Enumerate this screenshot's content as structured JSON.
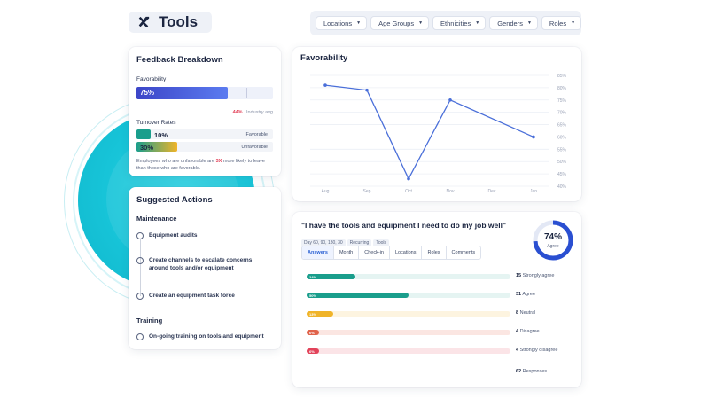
{
  "header": {
    "title": "Tools",
    "filters": [
      "Locations",
      "Age Groups",
      "Ethnicities",
      "Genders",
      "Roles"
    ]
  },
  "feedback": {
    "title": "Feedback Breakdown",
    "favorability_label": "Favorability",
    "favorability_value": "75%",
    "favorability_fraction": 0.75,
    "industry_value": "44%",
    "industry_label": "Industry avg",
    "turnover_label": "Turnover Rates",
    "turnover": [
      {
        "value": "10%",
        "label": "Favorable",
        "color": "#1a9e8c"
      },
      {
        "value": "30%",
        "label": "Unfavorable",
        "color": "#f0b429"
      }
    ],
    "note_pre": "Employees who are unfavorable are",
    "note_mult": "3X",
    "note_post": "more likely to leave than those who are favorable."
  },
  "actions": {
    "title": "Suggested Actions",
    "sections": [
      {
        "name": "Maintenance",
        "items": [
          "Equipment audits",
          "Create channels to escalate concerns around tools and/or equipment",
          "Create an equipment task force"
        ]
      },
      {
        "name": "Training",
        "items": [
          "On-going training on tools and equipment"
        ]
      }
    ]
  },
  "chart_data": {
    "type": "line",
    "title": "Favorability",
    "categories": [
      "Aug",
      "Sep",
      "Oct",
      "Nov",
      "Dec",
      "Jan"
    ],
    "series": [
      {
        "values": [
          81,
          79,
          43,
          75,
          null,
          60
        ]
      }
    ],
    "y_ticks": [
      "85%",
      "80%",
      "75%",
      "70%",
      "65%",
      "60%",
      "55%",
      "50%",
      "45%",
      "40%"
    ],
    "ylim": [
      40,
      85
    ],
    "grid": true,
    "color": "#4a6fd9"
  },
  "question": {
    "title": "\"I have the tools and equipment I need to do my job well\"",
    "tags": [
      "Day 60, 90, 180, 30",
      "Recurring",
      "Tools"
    ],
    "donut_value": "74%",
    "donut_label": "Agree",
    "donut_fraction": 0.74,
    "tabs": [
      "Answers",
      "Month",
      "Check-in",
      "Locations",
      "Roles",
      "Comments"
    ],
    "active_tab": "Answers",
    "answers": [
      {
        "pct": "24%",
        "fraction": 0.24,
        "count": "15",
        "label": "Strongly agree",
        "color": "#1a9e8c",
        "track": "#e5f4f2"
      },
      {
        "pct": "50%",
        "fraction": 0.5,
        "count": "31",
        "label": "Agree",
        "color": "#1a9e8c",
        "track": "#e5f4f2"
      },
      {
        "pct": "13%",
        "fraction": 0.13,
        "count": "8",
        "label": "Neutral",
        "color": "#f0b429",
        "track": "#fdf4e0"
      },
      {
        "pct": "6%",
        "fraction": 0.06,
        "count": "4",
        "label": "Disagree",
        "color": "#e0624a",
        "track": "#fbe6e2"
      },
      {
        "pct": "6%",
        "fraction": 0.06,
        "count": "4",
        "label": "Strongly disagree",
        "color": "#e2435a",
        "track": "#fbe4e7"
      }
    ],
    "responses_count": "62",
    "responses_label": "Responses"
  }
}
